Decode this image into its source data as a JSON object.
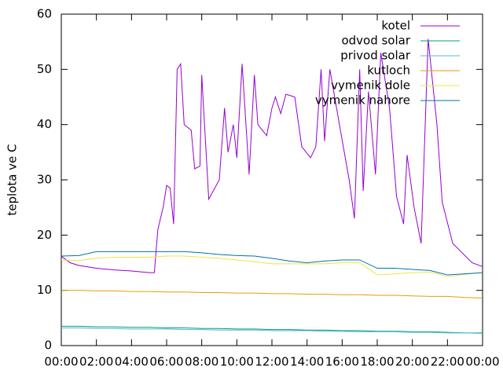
{
  "chart_data": {
    "type": "line",
    "ylabel": "teplota ve C",
    "x": [
      0,
      1,
      2,
      3,
      4,
      5,
      6,
      7,
      8,
      9,
      10,
      11,
      12,
      13,
      14,
      15,
      16,
      17,
      18,
      19,
      20,
      21,
      22,
      23,
      24
    ],
    "series": [
      {
        "name": "kotel",
        "color": "#9400d3",
        "x": [
          0,
          0.5,
          1,
          2,
          3,
          4,
          5,
          5.3,
          5.5,
          5.8,
          6.0,
          6.2,
          6.4,
          6.6,
          6.8,
          7.0,
          7.4,
          7.6,
          7.9,
          8.0,
          8.4,
          9.0,
          9.3,
          9.5,
          9.8,
          10.0,
          10.3,
          10.7,
          11.0,
          11.2,
          11.7,
          12.0,
          12.2,
          12.5,
          12.8,
          13.3,
          13.7,
          14.2,
          14.5,
          14.8,
          15.0,
          15.3,
          15.9,
          16.4,
          16.7,
          17.0,
          17.2,
          17.5,
          17.9,
          18.2,
          18.7,
          19.1,
          19.5,
          19.7,
          20.1,
          20.5,
          20.9,
          21.4,
          21.7,
          22.3,
          23.4,
          24
        ],
        "values": [
          16.2,
          15,
          14.5,
          14,
          13.7,
          13.5,
          13.2,
          13.2,
          21,
          25,
          29,
          28.5,
          22,
          50,
          51,
          40,
          39,
          32,
          32.5,
          49,
          26.5,
          30,
          43,
          35,
          40,
          34,
          51,
          31,
          49,
          40,
          38,
          43,
          45,
          42,
          45.5,
          45,
          36,
          34,
          36,
          50,
          37,
          50,
          39,
          30,
          23,
          50,
          28,
          46,
          31,
          53,
          43,
          27,
          22,
          34.5,
          25,
          18.5,
          55.5,
          40,
          26,
          18.5,
          15,
          14.3
        ]
      },
      {
        "name": "odvod solar",
        "color": "#009e73",
        "values": [
          3.5,
          3.5,
          3.4,
          3.4,
          3.3,
          3.3,
          3.2,
          3.2,
          3.1,
          3.1,
          3.0,
          3.0,
          2.9,
          2.9,
          2.8,
          2.8,
          2.7,
          2.7,
          2.6,
          2.6,
          2.5,
          2.5,
          2.4,
          2.3,
          2.3
        ]
      },
      {
        "name": "privod solar",
        "color": "#56b4e9",
        "values": [
          3.2,
          3.2,
          3.1,
          3.1,
          3.0,
          3.0,
          3.0,
          2.9,
          2.9,
          2.8,
          2.8,
          2.8,
          2.7,
          2.7,
          2.7,
          2.6,
          2.6,
          2.5,
          2.5,
          2.5,
          2.4,
          2.4,
          2.3,
          2.3,
          2.2
        ]
      },
      {
        "name": "kutloch",
        "color": "#e69f00",
        "values": [
          10,
          10,
          9.9,
          9.9,
          9.8,
          9.8,
          9.7,
          9.7,
          9.6,
          9.6,
          9.5,
          9.5,
          9.4,
          9.4,
          9.3,
          9.3,
          9.2,
          9.2,
          9.1,
          9.1,
          9.0,
          8.9,
          8.9,
          8.7,
          8.6
        ]
      },
      {
        "name": "vymenik dole",
        "color": "#f0e442",
        "values": [
          15.5,
          15.4,
          15.8,
          16,
          16,
          16,
          16.2,
          16.2,
          16,
          15.8,
          15.5,
          15.2,
          14.8,
          14.8,
          14.8,
          14.8,
          15,
          15,
          12.8,
          13,
          13.2,
          13.3,
          12.5,
          12.9,
          13.2
        ]
      },
      {
        "name": "vymenik nahore",
        "color": "#0072b2",
        "values": [
          16.2,
          16.3,
          17,
          17,
          17,
          17,
          17,
          17,
          16.8,
          16.5,
          16.3,
          16.2,
          15.8,
          15.3,
          15,
          15.3,
          15.5,
          15.5,
          14,
          14,
          13.8,
          13.6,
          12.8,
          13,
          13.2
        ]
      }
    ],
    "xlim": [
      0,
      24
    ],
    "xticks": [
      {
        "value": 0,
        "label": "00:00"
      },
      {
        "value": 2,
        "label": "02:00"
      },
      {
        "value": 4,
        "label": "04:00"
      },
      {
        "value": 6,
        "label": "06:00"
      },
      {
        "value": 8,
        "label": "08:00"
      },
      {
        "value": 10,
        "label": "10:00"
      },
      {
        "value": 12,
        "label": "12:00"
      },
      {
        "value": 14,
        "label": "14:00"
      },
      {
        "value": 16,
        "label": "16:00"
      },
      {
        "value": 18,
        "label": "18:00"
      },
      {
        "value": 20,
        "label": "20:00"
      },
      {
        "value": 22,
        "label": "22:00"
      },
      {
        "value": 24,
        "label": "00:00"
      }
    ],
    "ylim": [
      0,
      60
    ],
    "yticks": [
      0,
      10,
      20,
      30,
      40,
      50,
      60
    ],
    "legend": "top-right"
  }
}
